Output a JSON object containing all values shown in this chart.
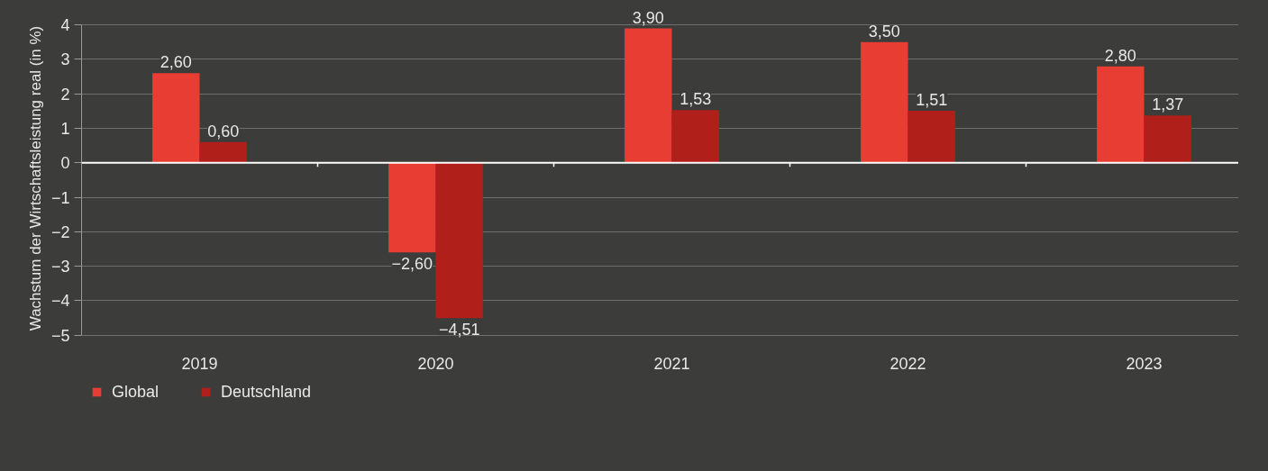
{
  "chart_data": {
    "type": "bar",
    "ylabel": "Wachstum der Wirtschaftsleistung real (in %)",
    "categories": [
      "2019",
      "2020",
      "2021",
      "2022",
      "2023"
    ],
    "series": [
      {
        "name": "Global",
        "color": "#e83d33",
        "values": [
          2.6,
          -2.6,
          3.9,
          3.5,
          2.8
        ],
        "value_labels": [
          "2,60",
          "−2,60",
          "3,90",
          "3,50",
          "2,80"
        ]
      },
      {
        "name": "Deutschland",
        "color": "#b01f1a",
        "values": [
          0.6,
          -4.51,
          1.53,
          1.51,
          1.37
        ],
        "value_labels": [
          "0,60",
          "−4,51",
          "1,53",
          "1,51",
          "1,37"
        ]
      }
    ],
    "ylim": [
      -5,
      4
    ],
    "yticks": [
      {
        "value": -5,
        "label": "−5"
      },
      {
        "value": -4,
        "label": "−4"
      },
      {
        "value": -3,
        "label": "−3"
      },
      {
        "value": -2,
        "label": "−2"
      },
      {
        "value": -1,
        "label": "−1"
      },
      0,
      1,
      2,
      3,
      4
    ],
    "grid": "y",
    "legend": "bottom left"
  }
}
